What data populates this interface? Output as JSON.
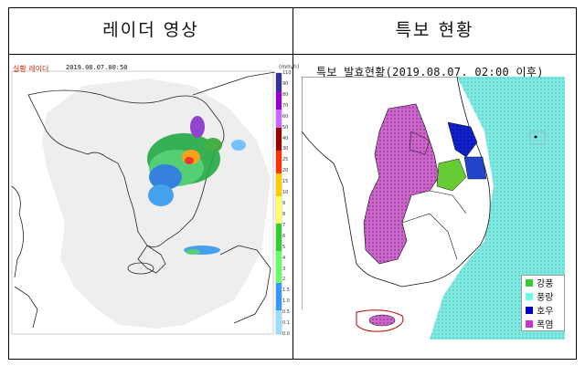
{
  "headers": {
    "left": "레이더 영상",
    "right": "특보 현황"
  },
  "radar": {
    "label": "실황 레이더",
    "timestamp": "2019.08.07.00:50",
    "unit": "(mm/h)",
    "scale_values": [
      "110",
      "90",
      "80",
      "70",
      "60",
      "50",
      "40",
      "30",
      "25",
      "20",
      "15",
      "10",
      "9",
      "8",
      "7",
      "6",
      "5",
      "4",
      "3",
      "2",
      "1.5",
      "1.0",
      "0.5",
      "0.1",
      "0.0"
    ]
  },
  "warnings": {
    "title": "특보 발효현황(2019.08.07. 02:00 이후)",
    "legend": [
      {
        "label": "강풍",
        "color": "#33cc33"
      },
      {
        "label": "풍랑",
        "color": "#66ffee"
      },
      {
        "label": "호우",
        "color": "#0000cc"
      },
      {
        "label": "폭염",
        "color": "#cc33cc"
      }
    ]
  },
  "colors": {
    "radar_bg": "#ffffff",
    "radar_coverage": "#f2f2f2",
    "sea_warning": "#7fe8e0"
  }
}
